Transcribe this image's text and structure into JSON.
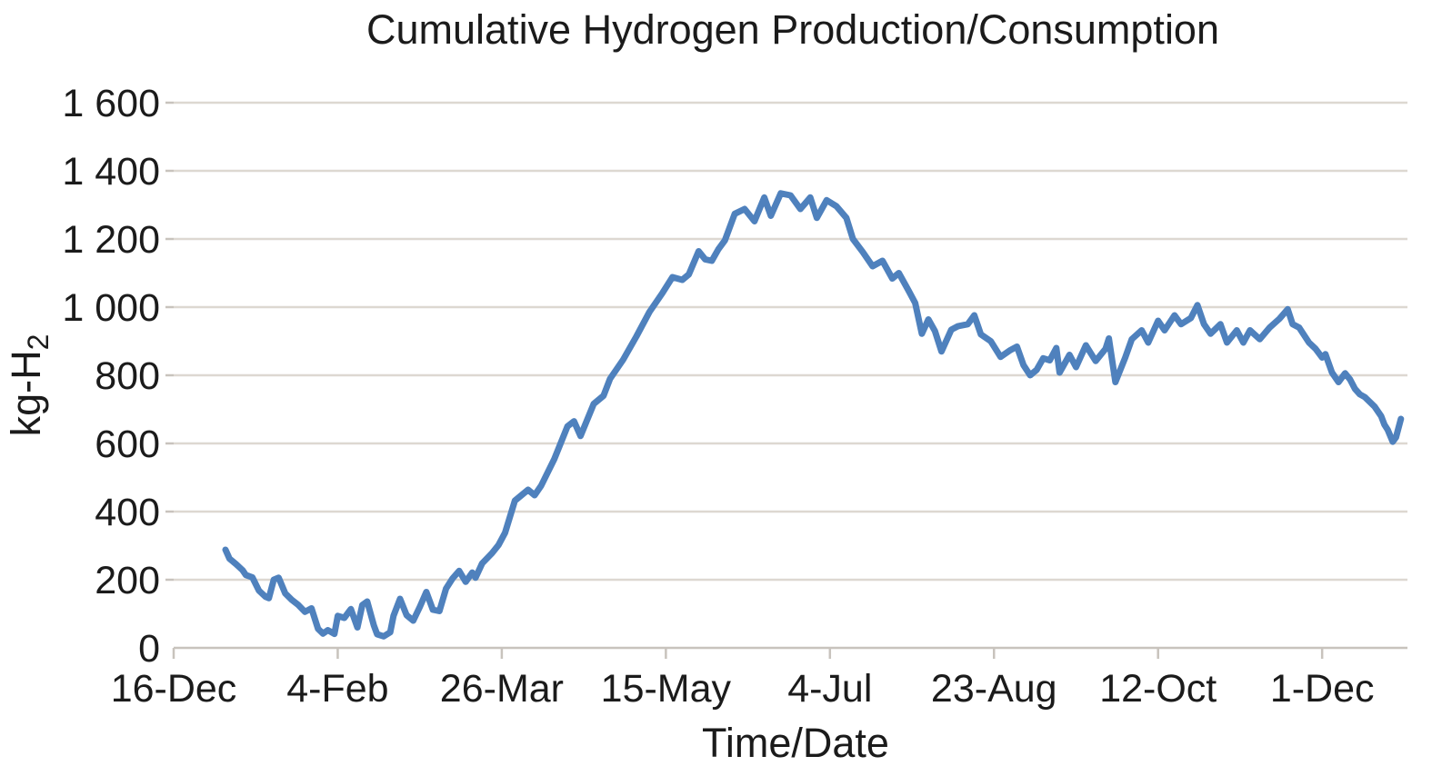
{
  "chart_data": {
    "type": "line",
    "title": "Cumulative Hydrogen Production/Consumption",
    "xlabel": "Time/Date",
    "ylabel": "kg-H2",
    "ylabel_main": "kg-H",
    "ylabel_sub": "2",
    "grid": "horizontal",
    "legend": "none",
    "line_color": "#4F81BD",
    "gridline_color": "#ddd8d1",
    "axis_line_color": "#c8c3bd",
    "ylim": [
      0,
      1600
    ],
    "xlim_days": [
      0,
      376
    ],
    "x_tick_spacing_days": 50,
    "x_tick_labels": [
      "16-Dec",
      "4-Feb",
      "26-Mar",
      "15-May",
      "4-Jul",
      "23-Aug",
      "12-Oct",
      "1-Dec"
    ],
    "y_ticks": [
      {
        "value": 0,
        "label": "0"
      },
      {
        "value": 200,
        "label": "200"
      },
      {
        "value": 400,
        "label": "400"
      },
      {
        "value": 600,
        "label": "600"
      },
      {
        "value": 800,
        "label": "800"
      },
      {
        "value": 1000,
        "label": "1 000"
      },
      {
        "value": 1200,
        "label": "1 200"
      },
      {
        "value": 1400,
        "label": "1 400"
      },
      {
        "value": 1600,
        "label": "1 600"
      }
    ],
    "series": [
      {
        "name": "Cumulative hydrogen production/consumption",
        "unit": "kg-H2",
        "x_unit": "days since 16-Dec",
        "points": [
          [
            15.8,
            288
          ],
          [
            17,
            262
          ],
          [
            19,
            246
          ],
          [
            21,
            228
          ],
          [
            22,
            214
          ],
          [
            24,
            207
          ],
          [
            26,
            168
          ],
          [
            28,
            150
          ],
          [
            29,
            146
          ],
          [
            30.5,
            200
          ],
          [
            32,
            206
          ],
          [
            34,
            160
          ],
          [
            36,
            141
          ],
          [
            38,
            126
          ],
          [
            40,
            106
          ],
          [
            42,
            116
          ],
          [
            44,
            56
          ],
          [
            45.5,
            42
          ],
          [
            47,
            52
          ],
          [
            49,
            41
          ],
          [
            50,
            94
          ],
          [
            52,
            88
          ],
          [
            54,
            114
          ],
          [
            56,
            60
          ],
          [
            57.5,
            126
          ],
          [
            59,
            136
          ],
          [
            61,
            66
          ],
          [
            62,
            40
          ],
          [
            64,
            34
          ],
          [
            66,
            46
          ],
          [
            67,
            94
          ],
          [
            69,
            144
          ],
          [
            71,
            96
          ],
          [
            73,
            80
          ],
          [
            75,
            120
          ],
          [
            77,
            164
          ],
          [
            79,
            112
          ],
          [
            81,
            108
          ],
          [
            83,
            174
          ],
          [
            85,
            204
          ],
          [
            87,
            226
          ],
          [
            89,
            194
          ],
          [
            91,
            221
          ],
          [
            92,
            206
          ],
          [
            94,
            248
          ],
          [
            97,
            278
          ],
          [
            99,
            302
          ],
          [
            101,
            338
          ],
          [
            104,
            432
          ],
          [
            108,
            464
          ],
          [
            110,
            448
          ],
          [
            112,
            476
          ],
          [
            116,
            554
          ],
          [
            120,
            650
          ],
          [
            122,
            665
          ],
          [
            124,
            622
          ],
          [
            128,
            716
          ],
          [
            131,
            740
          ],
          [
            133,
            790
          ],
          [
            137,
            846
          ],
          [
            141,
            914
          ],
          [
            145,
            986
          ],
          [
            149,
            1042
          ],
          [
            152,
            1088
          ],
          [
            155,
            1080
          ],
          [
            157,
            1096
          ],
          [
            160,
            1164
          ],
          [
            162,
            1140
          ],
          [
            164,
            1136
          ],
          [
            166,
            1170
          ],
          [
            168,
            1196
          ],
          [
            171,
            1274
          ],
          [
            174,
            1288
          ],
          [
            177,
            1252
          ],
          [
            180,
            1322
          ],
          [
            182,
            1268
          ],
          [
            185,
            1334
          ],
          [
            188,
            1328
          ],
          [
            191,
            1288
          ],
          [
            194,
            1322
          ],
          [
            196,
            1262
          ],
          [
            199,
            1314
          ],
          [
            202,
            1296
          ],
          [
            205,
            1262
          ],
          [
            207,
            1200
          ],
          [
            210,
            1162
          ],
          [
            213,
            1120
          ],
          [
            216,
            1136
          ],
          [
            219,
            1084
          ],
          [
            221,
            1100
          ],
          [
            224,
            1048
          ],
          [
            226,
            1012
          ],
          [
            228,
            922
          ],
          [
            230,
            964
          ],
          [
            232,
            930
          ],
          [
            234,
            870
          ],
          [
            237,
            934
          ],
          [
            239,
            944
          ],
          [
            242,
            950
          ],
          [
            244,
            976
          ],
          [
            246,
            920
          ],
          [
            249,
            900
          ],
          [
            252,
            854
          ],
          [
            255,
            874
          ],
          [
            257,
            884
          ],
          [
            259,
            830
          ],
          [
            261,
            800
          ],
          [
            263,
            816
          ],
          [
            265,
            850
          ],
          [
            267,
            844
          ],
          [
            269,
            880
          ],
          [
            270,
            808
          ],
          [
            273,
            860
          ],
          [
            275,
            824
          ],
          [
            278,
            888
          ],
          [
            281,
            842
          ],
          [
            284,
            878
          ],
          [
            285,
            908
          ],
          [
            287,
            780
          ],
          [
            290,
            852
          ],
          [
            292,
            906
          ],
          [
            295,
            932
          ],
          [
            297,
            896
          ],
          [
            300,
            960
          ],
          [
            302,
            932
          ],
          [
            305,
            976
          ],
          [
            307,
            950
          ],
          [
            310,
            968
          ],
          [
            312,
            1006
          ],
          [
            314,
            950
          ],
          [
            316,
            922
          ],
          [
            319,
            950
          ],
          [
            321,
            896
          ],
          [
            324,
            932
          ],
          [
            326,
            896
          ],
          [
            328,
            932
          ],
          [
            331,
            906
          ],
          [
            334,
            940
          ],
          [
            337,
            966
          ],
          [
            339.5,
            994
          ],
          [
            341,
            950
          ],
          [
            343,
            940
          ],
          [
            346,
            896
          ],
          [
            348,
            878
          ],
          [
            350,
            852
          ],
          [
            351,
            862
          ],
          [
            353,
            808
          ],
          [
            355,
            780
          ],
          [
            357,
            806
          ],
          [
            358.5,
            788
          ],
          [
            360,
            760
          ],
          [
            361.5,
            744
          ],
          [
            363,
            736
          ],
          [
            366,
            708
          ],
          [
            368,
            680
          ],
          [
            369,
            655
          ],
          [
            370,
            640
          ],
          [
            371.5,
            605
          ],
          [
            372.5,
            618
          ],
          [
            374,
            672
          ]
        ]
      }
    ]
  }
}
